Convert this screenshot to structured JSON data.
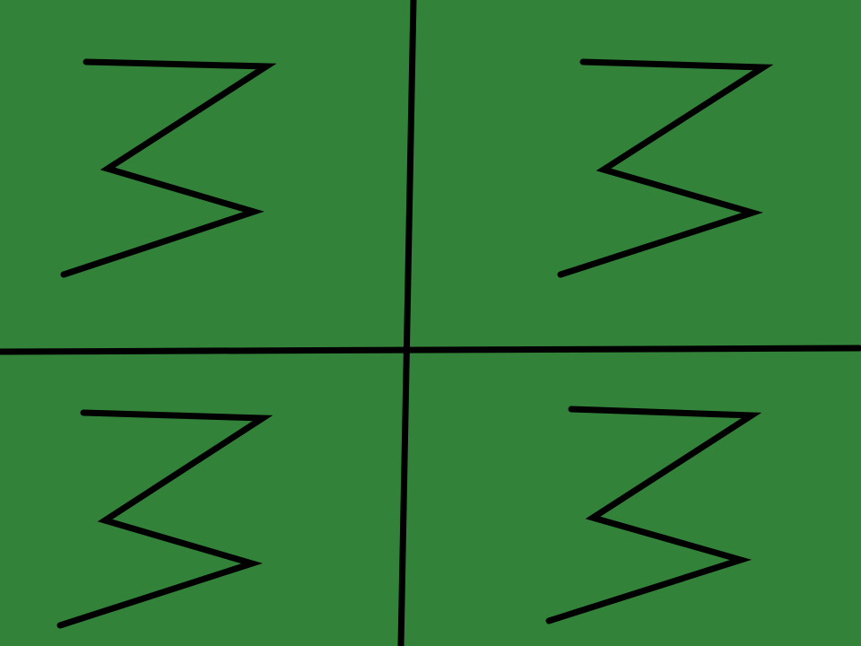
{
  "canvas": {
    "background_color": "#338239",
    "stroke_color": "#000000"
  },
  "quadrants": [
    {
      "name": "top-left",
      "mark": "zigzag"
    },
    {
      "name": "top-right",
      "mark": "zigzag"
    },
    {
      "name": "bottom-left",
      "mark": "zigzag"
    },
    {
      "name": "bottom-right",
      "mark": "zigzag"
    }
  ]
}
